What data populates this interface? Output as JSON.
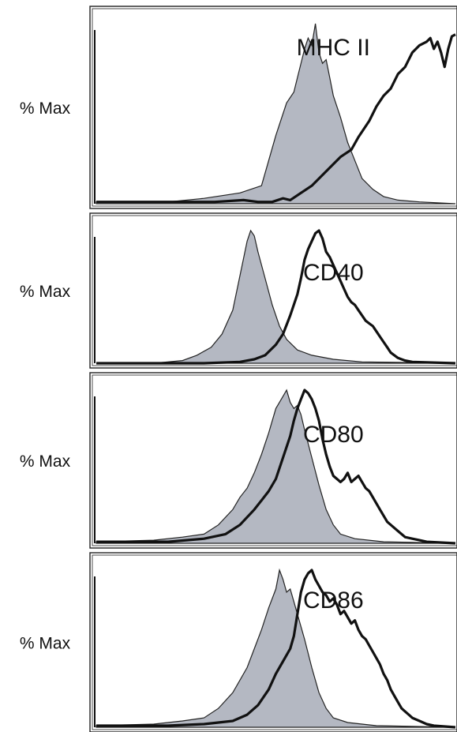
{
  "chart_data": [
    {
      "type": "area",
      "title": "MHC II",
      "ylabel": "% Max",
      "xlim": [
        0,
        100
      ],
      "ylim": [
        0,
        100
      ],
      "series": [
        {
          "fill": "#b4b8c2",
          "points": [
            [
              0,
              1
            ],
            [
              20,
              1
            ],
            [
              30,
              3
            ],
            [
              40,
              6
            ],
            [
              46,
              10
            ],
            [
              48,
              24
            ],
            [
              50,
              38
            ],
            [
              53,
              56
            ],
            [
              55,
              62
            ],
            [
              56,
              70
            ],
            [
              58,
              86
            ],
            [
              59,
              92
            ],
            [
              60,
              88
            ],
            [
              61,
              100
            ],
            [
              62,
              84
            ],
            [
              63,
              78
            ],
            [
              64,
              80
            ],
            [
              65,
              70
            ],
            [
              66,
              60
            ],
            [
              68,
              48
            ],
            [
              70,
              34
            ],
            [
              72,
              24
            ],
            [
              74,
              14
            ],
            [
              77,
              8
            ],
            [
              80,
              4
            ],
            [
              84,
              2
            ],
            [
              90,
              1
            ],
            [
              100,
              0
            ]
          ]
        },
        {
          "fill": "none",
          "points": [
            [
              0,
              1
            ],
            [
              22,
              1
            ],
            [
              33,
              1
            ],
            [
              41,
              2
            ],
            [
              45,
              1
            ],
            [
              49,
              1
            ],
            [
              52,
              3
            ],
            [
              54,
              2
            ],
            [
              57,
              6
            ],
            [
              60,
              10
            ],
            [
              62,
              14
            ],
            [
              65,
              20
            ],
            [
              68,
              26
            ],
            [
              71,
              30
            ],
            [
              73,
              37
            ],
            [
              76,
              46
            ],
            [
              78,
              54
            ],
            [
              80,
              60
            ],
            [
              82,
              64
            ],
            [
              84,
              72
            ],
            [
              86,
              76
            ],
            [
              88,
              84
            ],
            [
              90,
              88
            ],
            [
              92,
              90
            ],
            [
              93,
              92
            ],
            [
              94,
              86
            ],
            [
              95,
              90
            ],
            [
              96,
              84
            ],
            [
              97,
              76
            ],
            [
              98,
              86
            ],
            [
              99,
              93
            ],
            [
              100,
              94
            ]
          ]
        }
      ],
      "label_x": 66
    },
    {
      "type": "area",
      "title": "CD40",
      "ylabel": "% Max",
      "xlim": [
        0,
        100
      ],
      "ylim": [
        0,
        100
      ],
      "series": [
        {
          "fill": "#b4b8c2",
          "points": [
            [
              0,
              0
            ],
            [
              16,
              0
            ],
            [
              24,
              2
            ],
            [
              28,
              6
            ],
            [
              32,
              12
            ],
            [
              35,
              22
            ],
            [
              38,
              40
            ],
            [
              40,
              66
            ],
            [
              42,
              92
            ],
            [
              43,
              100
            ],
            [
              44,
              96
            ],
            [
              45,
              84
            ],
            [
              47,
              64
            ],
            [
              49,
              44
            ],
            [
              51,
              28
            ],
            [
              53,
              18
            ],
            [
              56,
              10
            ],
            [
              60,
              6
            ],
            [
              66,
              3
            ],
            [
              74,
              1
            ],
            [
              100,
              0
            ]
          ]
        },
        {
          "fill": "none",
          "points": [
            [
              0,
              0
            ],
            [
              30,
              0
            ],
            [
              40,
              1
            ],
            [
              44,
              3
            ],
            [
              47,
              6
            ],
            [
              50,
              14
            ],
            [
              52,
              22
            ],
            [
              54,
              36
            ],
            [
              56,
              52
            ],
            [
              57,
              64
            ],
            [
              58,
              78
            ],
            [
              59,
              86
            ],
            [
              60,
              92
            ],
            [
              61,
              98
            ],
            [
              62,
              100
            ],
            [
              63,
              94
            ],
            [
              64,
              84
            ],
            [
              65,
              80
            ],
            [
              66,
              74
            ],
            [
              67,
              68
            ],
            [
              68,
              62
            ],
            [
              69,
              56
            ],
            [
              70,
              50
            ],
            [
              71,
              46
            ],
            [
              72,
              44
            ],
            [
              73,
              40
            ],
            [
              74,
              36
            ],
            [
              75,
              32
            ],
            [
              76,
              30
            ],
            [
              77,
              28
            ],
            [
              78,
              24
            ],
            [
              79,
              20
            ],
            [
              80,
              16
            ],
            [
              81,
              12
            ],
            [
              82,
              8
            ],
            [
              83,
              6
            ],
            [
              84,
              4
            ],
            [
              85,
              3
            ],
            [
              86,
              2
            ],
            [
              88,
              1
            ],
            [
              100,
              0
            ]
          ]
        }
      ],
      "label_x": 66
    },
    {
      "type": "area",
      "title": "CD80",
      "ylabel": "% Max",
      "xlim": [
        0,
        100
      ],
      "ylim": [
        0,
        100
      ],
      "series": [
        {
          "fill": "#b4b8c2",
          "points": [
            [
              0,
              1
            ],
            [
              16,
              2
            ],
            [
              24,
              4
            ],
            [
              30,
              6
            ],
            [
              34,
              12
            ],
            [
              38,
              22
            ],
            [
              40,
              30
            ],
            [
              42,
              36
            ],
            [
              44,
              46
            ],
            [
              46,
              58
            ],
            [
              48,
              72
            ],
            [
              50,
              88
            ],
            [
              52,
              96
            ],
            [
              53,
              100
            ],
            [
              54,
              92
            ],
            [
              55,
              88
            ],
            [
              56,
              90
            ],
            [
              57,
              84
            ],
            [
              58,
              74
            ],
            [
              60,
              56
            ],
            [
              62,
              38
            ],
            [
              64,
              22
            ],
            [
              66,
              12
            ],
            [
              68,
              6
            ],
            [
              72,
              3
            ],
            [
              80,
              1
            ],
            [
              100,
              0
            ]
          ]
        },
        {
          "fill": "none",
          "points": [
            [
              0,
              1
            ],
            [
              20,
              1
            ],
            [
              30,
              3
            ],
            [
              36,
              6
            ],
            [
              40,
              12
            ],
            [
              44,
              22
            ],
            [
              46,
              28
            ],
            [
              48,
              34
            ],
            [
              50,
              42
            ],
            [
              52,
              56
            ],
            [
              54,
              70
            ],
            [
              55,
              80
            ],
            [
              56,
              88
            ],
            [
              57,
              94
            ],
            [
              58,
              100
            ],
            [
              59,
              98
            ],
            [
              60,
              94
            ],
            [
              61,
              88
            ],
            [
              62,
              80
            ],
            [
              63,
              68
            ],
            [
              64,
              58
            ],
            [
              65,
              50
            ],
            [
              66,
              44
            ],
            [
              67,
              42
            ],
            [
              68,
              40
            ],
            [
              69,
              42
            ],
            [
              70,
              46
            ],
            [
              71,
              40
            ],
            [
              72,
              42
            ],
            [
              73,
              44
            ],
            [
              74,
              40
            ],
            [
              75,
              36
            ],
            [
              76,
              34
            ],
            [
              77,
              30
            ],
            [
              78,
              26
            ],
            [
              79,
              22
            ],
            [
              80,
              18
            ],
            [
              81,
              14
            ],
            [
              82,
              12
            ],
            [
              83,
              10
            ],
            [
              84,
              8
            ],
            [
              85,
              6
            ],
            [
              86,
              4
            ],
            [
              88,
              3
            ],
            [
              90,
              2
            ],
            [
              92,
              1
            ],
            [
              100,
              0
            ]
          ]
        }
      ],
      "label_x": 66
    },
    {
      "type": "area",
      "title": "CD86",
      "ylabel": "% Max",
      "xlim": [
        0,
        100
      ],
      "ylim": [
        0,
        100
      ],
      "series": [
        {
          "fill": "#b4b8c2",
          "points": [
            [
              0,
              1
            ],
            [
              16,
              2
            ],
            [
              24,
              4
            ],
            [
              30,
              6
            ],
            [
              34,
              12
            ],
            [
              38,
              22
            ],
            [
              40,
              30
            ],
            [
              42,
              38
            ],
            [
              44,
              50
            ],
            [
              46,
              62
            ],
            [
              48,
              76
            ],
            [
              50,
              88
            ],
            [
              51,
              100
            ],
            [
              52,
              94
            ],
            [
              53,
              86
            ],
            [
              54,
              88
            ],
            [
              55,
              80
            ],
            [
              56,
              72
            ],
            [
              58,
              56
            ],
            [
              60,
              38
            ],
            [
              62,
              22
            ],
            [
              64,
              12
            ],
            [
              66,
              6
            ],
            [
              70,
              3
            ],
            [
              78,
              1
            ],
            [
              100,
              0
            ]
          ]
        },
        {
          "fill": "none",
          "points": [
            [
              0,
              1
            ],
            [
              20,
              1
            ],
            [
              30,
              2
            ],
            [
              38,
              4
            ],
            [
              42,
              8
            ],
            [
              45,
              14
            ],
            [
              48,
              24
            ],
            [
              50,
              34
            ],
            [
              52,
              42
            ],
            [
              54,
              50
            ],
            [
              55,
              58
            ],
            [
              56,
              72
            ],
            [
              57,
              86
            ],
            [
              58,
              94
            ],
            [
              59,
              98
            ],
            [
              60,
              100
            ],
            [
              61,
              94
            ],
            [
              62,
              90
            ],
            [
              63,
              86
            ],
            [
              64,
              84
            ],
            [
              65,
              80
            ],
            [
              66,
              82
            ],
            [
              67,
              78
            ],
            [
              68,
              72
            ],
            [
              69,
              74
            ],
            [
              70,
              70
            ],
            [
              71,
              66
            ],
            [
              72,
              68
            ],
            [
              73,
              62
            ],
            [
              74,
              58
            ],
            [
              75,
              56
            ],
            [
              76,
              52
            ],
            [
              77,
              48
            ],
            [
              78,
              44
            ],
            [
              79,
              40
            ],
            [
              80,
              34
            ],
            [
              81,
              30
            ],
            [
              82,
              24
            ],
            [
              83,
              20
            ],
            [
              84,
              16
            ],
            [
              85,
              12
            ],
            [
              86,
              10
            ],
            [
              87,
              8
            ],
            [
              88,
              6
            ],
            [
              90,
              4
            ],
            [
              92,
              2
            ],
            [
              94,
              1
            ],
            [
              100,
              0
            ]
          ]
        }
      ],
      "label_x": 66
    }
  ]
}
